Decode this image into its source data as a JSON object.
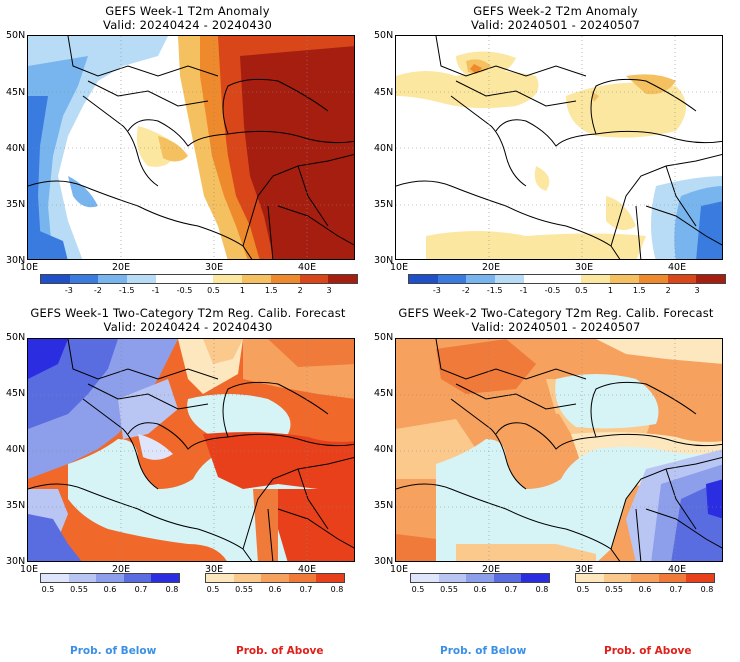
{
  "panels": [
    {
      "title": "GEFS Week-1 T2m Anomaly",
      "valid": "Valid: 20240424 - 20240430"
    },
    {
      "title": "GEFS Week-2 T2m Anomaly",
      "valid": "Valid: 20240501 - 20240507"
    },
    {
      "title": "GEFS Week-1 Two-Category T2m Reg. Calib. Forecast",
      "valid": "Valid: 20240424 - 20240430"
    },
    {
      "title": "GEFS Week-2 Two-Category T2m Reg. Calib. Forecast",
      "valid": "Valid: 20240501 - 20240507"
    }
  ],
  "axes": {
    "lat": [
      "50N",
      "45N",
      "40N",
      "35N",
      "30N"
    ],
    "lon": [
      "10E",
      "20E",
      "30E",
      "40E"
    ]
  },
  "anomaly_scale": {
    "ticks": [
      "-3",
      "-2",
      "-1.5",
      "-1",
      "-0.5",
      "0.5",
      "1",
      "1.5",
      "2",
      "3"
    ],
    "colors": [
      "#2050c8",
      "#3a7be0",
      "#78b4ee",
      "#b8dcf6",
      "#ffffff",
      "#ffffff",
      "#fbe7a0",
      "#f5c060",
      "#ee8a2c",
      "#d8461a",
      "#a51e10"
    ]
  },
  "prob_scale": {
    "below_ticks": [
      "0.5",
      "0.55",
      "0.6",
      "0.7",
      "0.8"
    ],
    "above_ticks": [
      "0.5",
      "0.55",
      "0.6",
      "0.7",
      "0.8"
    ],
    "below_colors": [
      "#dfe6fb",
      "#b9c6f4",
      "#8d9eeb",
      "#5a6de0",
      "#2a2ee0"
    ],
    "above_colors": [
      "#fde7bf",
      "#fbc98c",
      "#f6a15e",
      "#f07a3a",
      "#e8401a"
    ],
    "below_label": "Prob. of Below",
    "above_label": "Prob. of Above",
    "below_color": "#3b8fe6",
    "above_color": "#e0201a"
  },
  "colors": {
    "sea_fill": "#d6f3f6",
    "border": "#000000",
    "grid": "#8a8a8a"
  }
}
